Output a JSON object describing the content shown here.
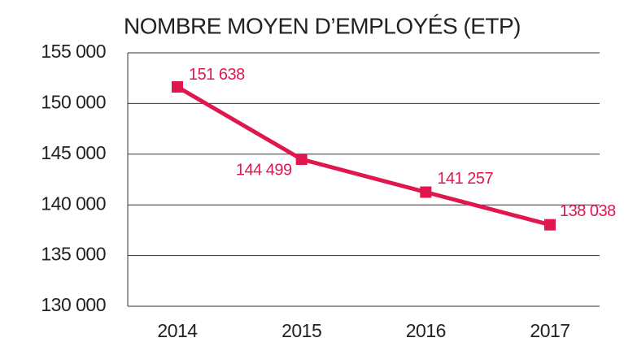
{
  "chart_data": {
    "type": "line",
    "title": "NOMBRE MOYEN D’EMPLOYÉS (ETP)",
    "categories": [
      "2014",
      "2015",
      "2016",
      "2017"
    ],
    "series": [
      {
        "name": null,
        "color": "#e0174f",
        "values": [
          151638,
          144499,
          141257,
          138038
        ],
        "value_labels": [
          "151 638",
          "144 499",
          "141 257",
          "138 038"
        ]
      }
    ],
    "ylim": [
      130000,
      155000
    ],
    "yticks": [
      {
        "value": 130000,
        "label": "130 000"
      },
      {
        "value": 135000,
        "label": "135 000"
      },
      {
        "value": 140000,
        "label": "140 000"
      },
      {
        "value": 145000,
        "label": "145 000"
      },
      {
        "value": 150000,
        "label": "150 000"
      },
      {
        "value": 155000,
        "label": "155 000"
      }
    ],
    "grid": true
  }
}
